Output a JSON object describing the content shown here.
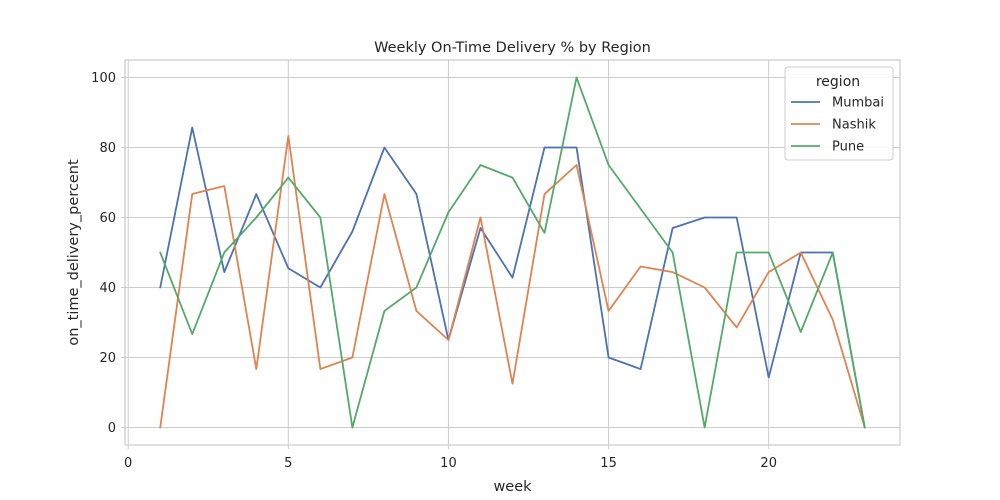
{
  "chart_data": {
    "type": "line",
    "title": "Weekly On-Time Delivery % by Region",
    "xlabel": "week",
    "ylabel": "on_time_delivery_percent",
    "xlim": [
      -0.1,
      24.1
    ],
    "ylim": [
      -5,
      105
    ],
    "xticks": [
      0,
      5,
      10,
      15,
      20
    ],
    "yticks": [
      0,
      20,
      40,
      60,
      80,
      100
    ],
    "grid": true,
    "legend": {
      "title": "region",
      "placement": "top-right"
    },
    "x": [
      1,
      2,
      3,
      4,
      5,
      6,
      7,
      8,
      9,
      10,
      11,
      12,
      13,
      14,
      15,
      16,
      17,
      18,
      19,
      20,
      21,
      22,
      23
    ],
    "series": [
      {
        "name": "Mumbai",
        "color": "#4c72b0",
        "values": [
          40,
          85.7,
          44.4,
          66.7,
          45.5,
          40,
          56,
          80,
          66.7,
          25,
          57,
          42.8,
          80,
          80,
          20,
          16.7,
          57,
          60,
          60,
          14.3,
          50,
          50,
          0
        ]
      },
      {
        "name": "Nashik",
        "color": "#dd8452",
        "values": [
          0,
          66.7,
          69,
          16.7,
          83.3,
          16.7,
          20,
          66.7,
          33.3,
          25,
          60,
          12.5,
          66.7,
          75,
          33.3,
          46,
          44.4,
          40,
          28.6,
          44.4,
          50,
          30.8,
          0
        ]
      },
      {
        "name": "Pune",
        "color": "#55a868",
        "values": [
          50,
          26.7,
          50,
          60,
          71.4,
          60,
          0,
          33.3,
          40,
          61.5,
          75,
          71.4,
          55.6,
          100,
          75,
          62.5,
          50,
          0,
          50,
          50,
          27.3,
          50,
          0
        ]
      }
    ]
  }
}
